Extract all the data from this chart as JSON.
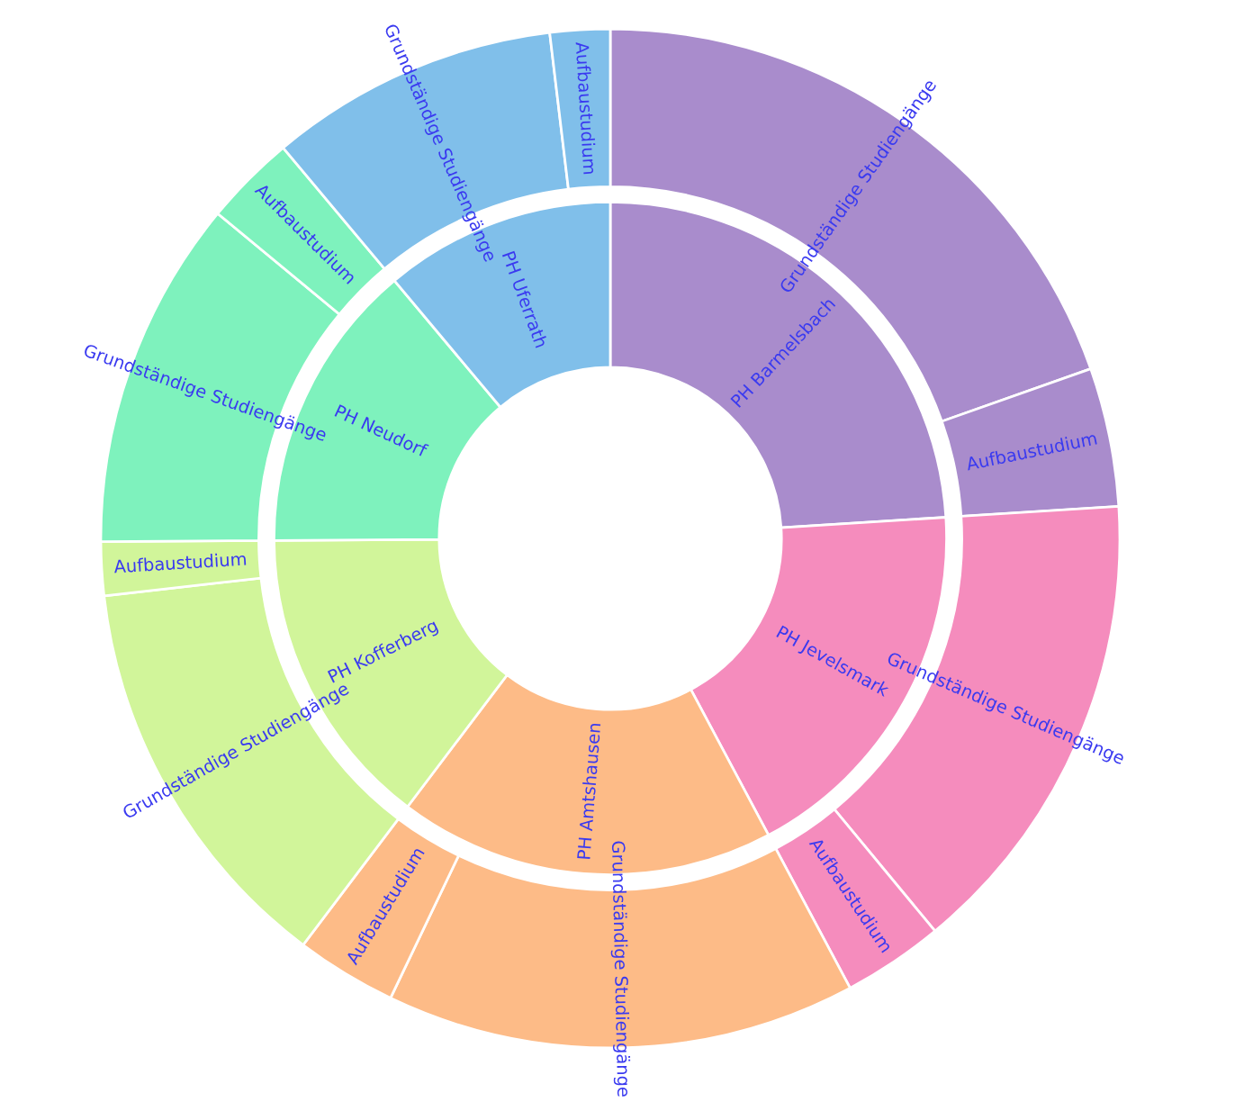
{
  "chart_data": {
    "type": "donut",
    "categories": [
      "Grundständige Studiengänge",
      "Aufbaustudium",
      "Grundständige Studiengänge",
      "Aufbaustudium",
      "Grundständige Studiengänge",
      "Aufbaustudium",
      "Grundständige Studiengänge",
      "Aufbaustudium",
      "Grundständige Studiengänge",
      "Aufbaustudium",
      "Grundständige Studiengänge",
      "Aufbaustudium"
    ],
    "colors": [
      "#a98ccc",
      "#a98ccc",
      "#f58cbd",
      "#f58cbd",
      "#fdbb87",
      "#fdbb87",
      "#d1f59a",
      "#d1f59a",
      "#7ef2bd",
      "#7ef2bd",
      "#80bfea",
      "#80bfea"
    ],
    "series": [
      {
        "values": [
          19.6,
          4.4,
          15.0,
          3.2,
          14.9,
          3.2,
          12.9,
          1.7,
          11.1,
          2.9,
          9.2,
          1.9
        ]
      },
      {
        "values": [
          24.0,
          null,
          18.2,
          null,
          18.1,
          null,
          14.6,
          null,
          14.0,
          null,
          11.1,
          null
        ]
      }
    ],
    "annotations": [
      "PH Barmelsbach",
      "PH Jevelsmark",
      "PH Amtshausen",
      "PH Kofferberg",
      "PH Neudorf",
      "PH Uferrath"
    ]
  }
}
